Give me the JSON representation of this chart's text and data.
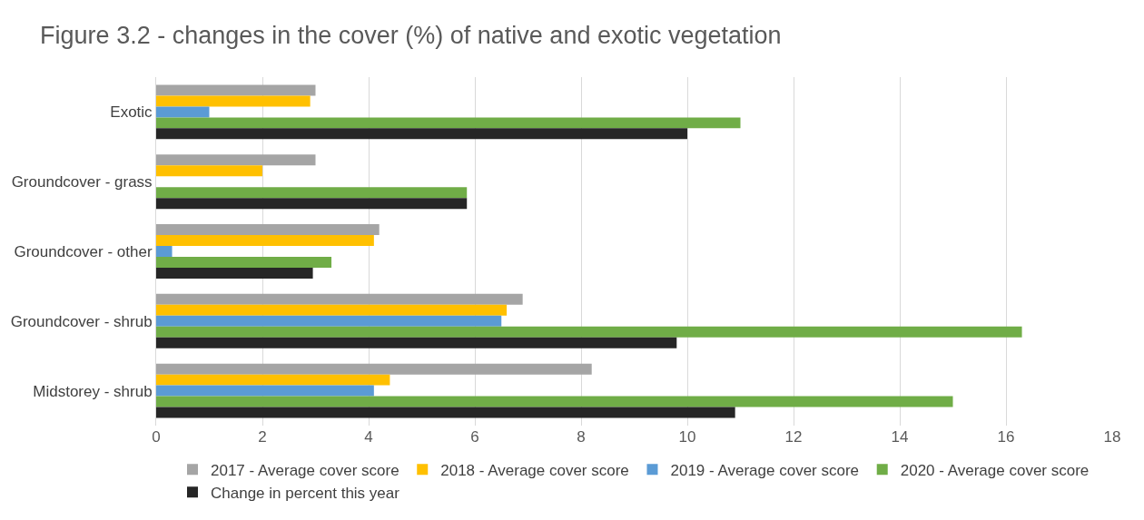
{
  "chart_data": {
    "type": "bar",
    "orientation": "horizontal",
    "title": "Figure 3.2 - changes in the cover (%) of native and exotic vegetation",
    "categories": [
      "Exotic",
      "Groundcover - grass",
      "Groundcover - other",
      "Groundcover - shrub",
      "Midstorey - shrub"
    ],
    "series": [
      {
        "name": "2017 - Average cover score",
        "color": "#a5a5a5",
        "values": [
          3.0,
          3.0,
          4.2,
          6.9,
          8.2
        ]
      },
      {
        "name": "2018 - Average cover score",
        "color": "#ffc000",
        "values": [
          2.9,
          2.0,
          4.1,
          6.6,
          4.4
        ]
      },
      {
        "name": "2019 - Average cover score",
        "color": "#5b9bd5",
        "values": [
          1.0,
          null,
          0.3,
          6.5,
          4.1
        ]
      },
      {
        "name": "2020 - Average cover score",
        "color": "#70ad47",
        "values": [
          11.0,
          5.85,
          3.3,
          16.3,
          15.0
        ]
      },
      {
        "name": "Change in percent this year",
        "color": "#262626",
        "values": [
          10.0,
          5.85,
          2.95,
          9.8,
          10.9
        ]
      }
    ],
    "xlim": [
      0,
      18
    ],
    "xticks": [
      0,
      2,
      4,
      6,
      8,
      10,
      12,
      14,
      16,
      18
    ],
    "grid": "x",
    "legend": "bottom"
  }
}
